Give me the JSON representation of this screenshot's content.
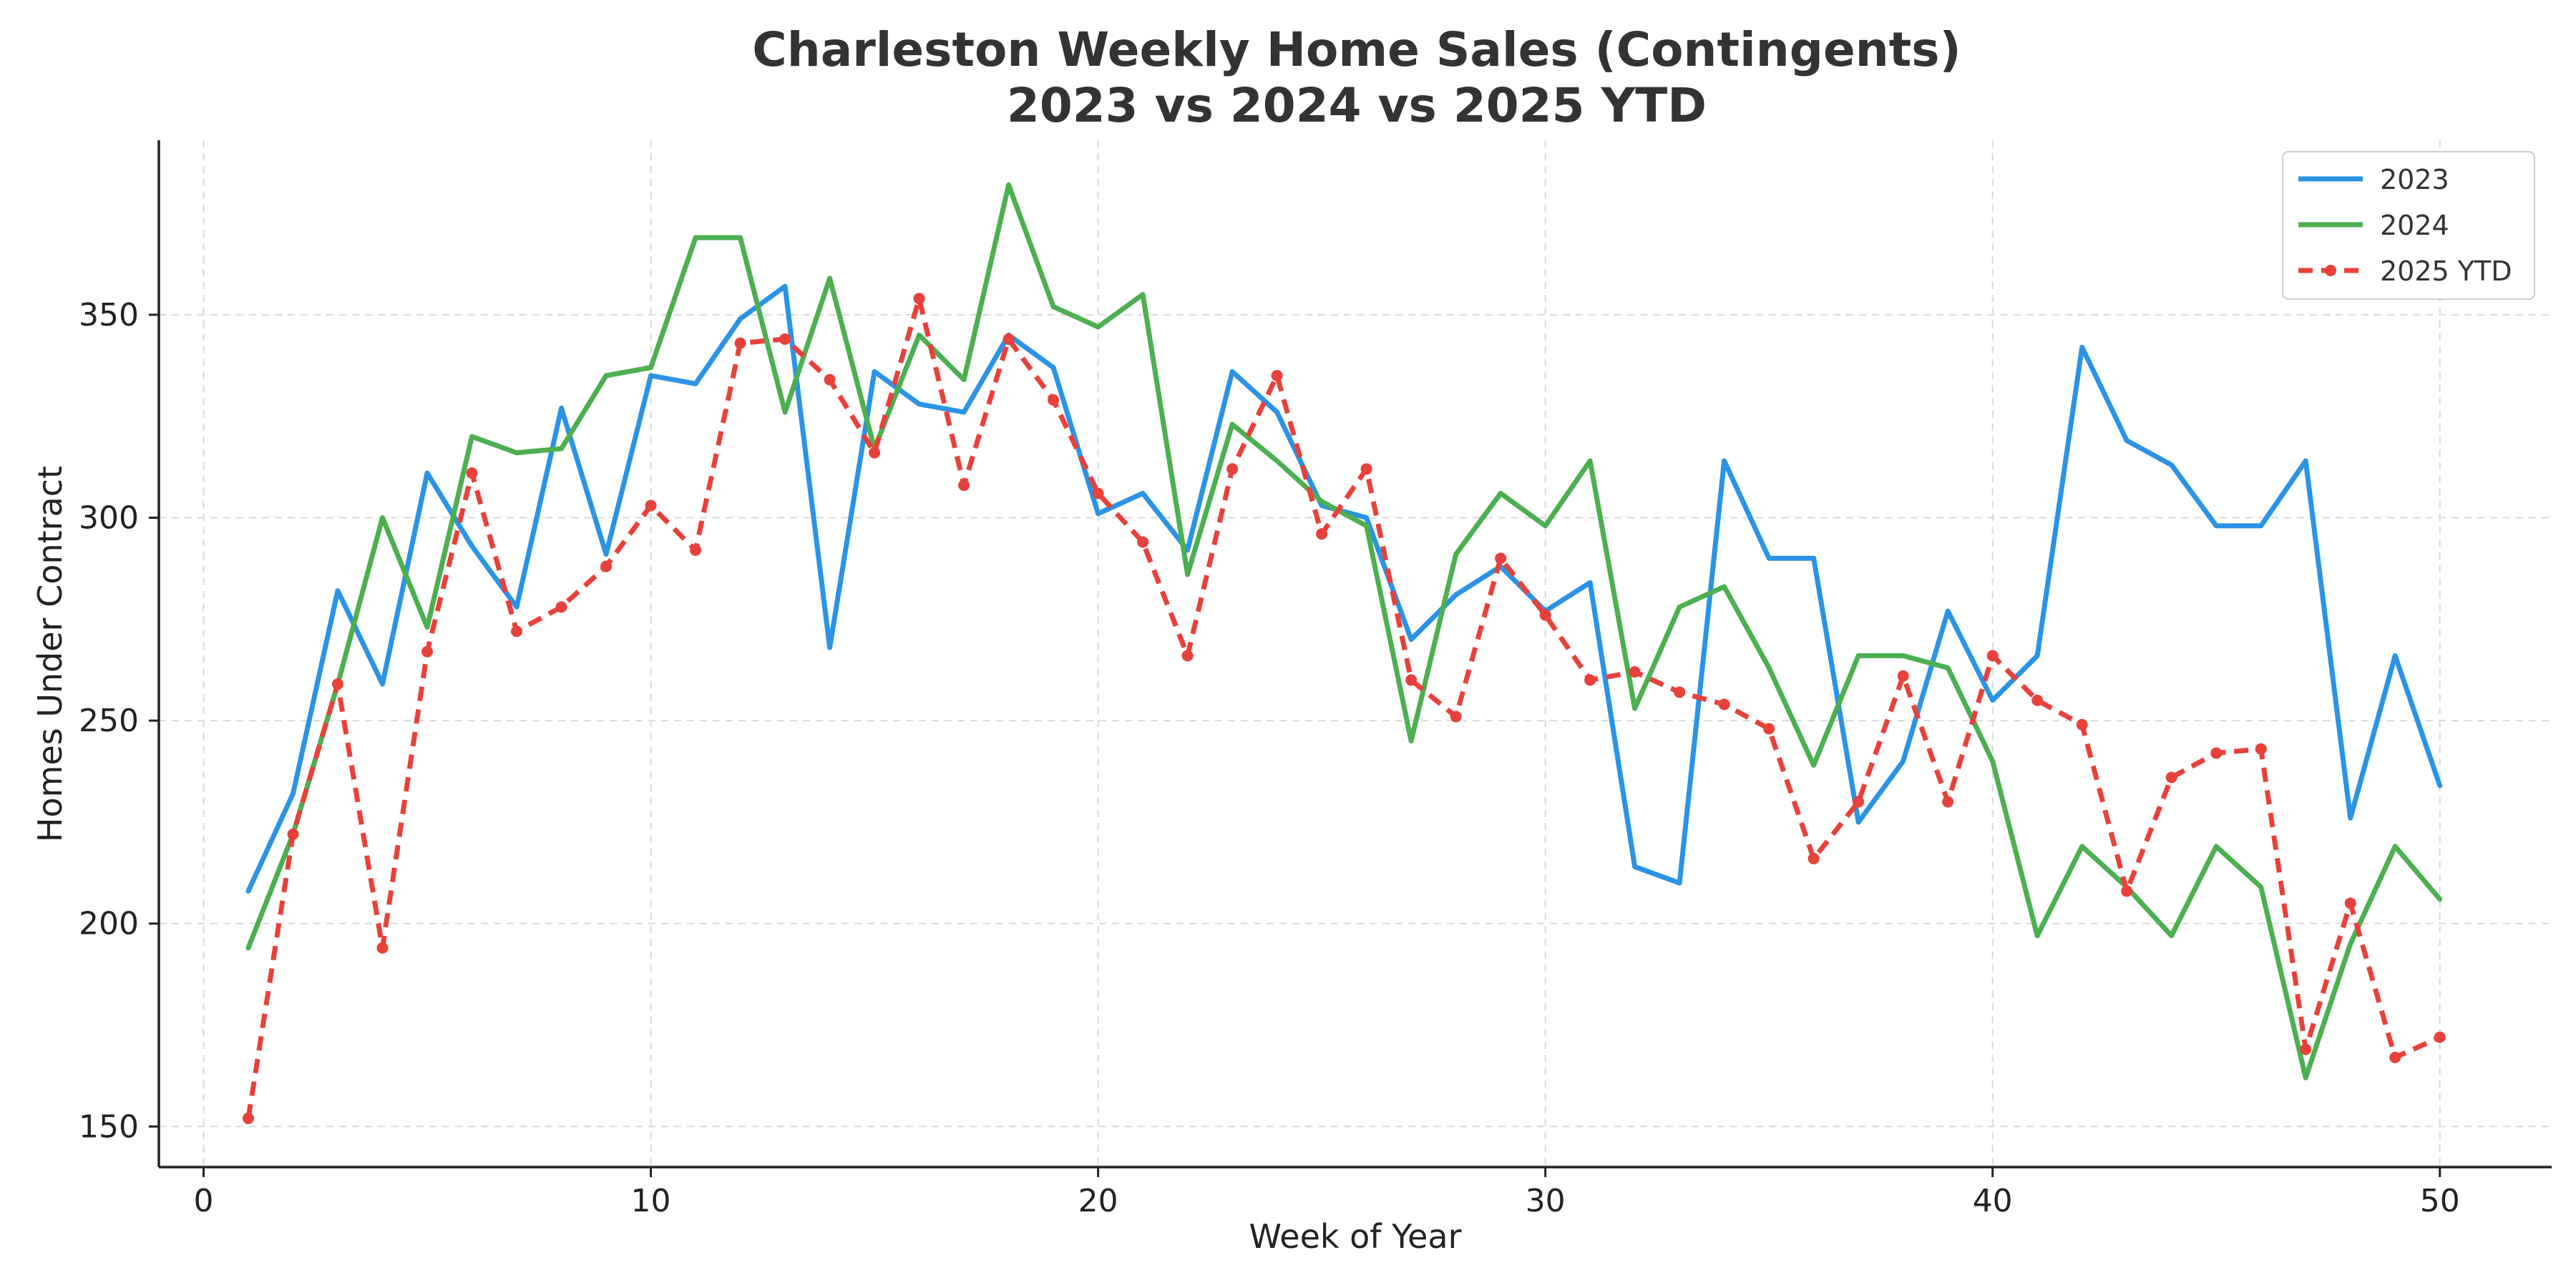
{
  "chart_data": {
    "type": "line",
    "title": "Charleston Weekly Home Sales (Contingents)",
    "subtitle": "2023 vs 2024 vs 2025 YTD",
    "xlabel": "Week of Year",
    "ylabel": "Homes Under Contract",
    "xlim": [
      -1,
      52.5
    ],
    "ylim": [
      140,
      393
    ],
    "xticks": [
      0,
      10,
      20,
      30,
      40,
      50
    ],
    "yticks": [
      150,
      200,
      250,
      300,
      350
    ],
    "grid": true,
    "legend_position": "top-right",
    "x": [
      1,
      2,
      3,
      4,
      5,
      6,
      7,
      8,
      9,
      10,
      11,
      12,
      13,
      14,
      15,
      16,
      17,
      18,
      19,
      20,
      21,
      22,
      23,
      24,
      25,
      26,
      27,
      28,
      29,
      30,
      31,
      32,
      33,
      34,
      35,
      36,
      37,
      38,
      39,
      40,
      41,
      42,
      43,
      44,
      45,
      46,
      47,
      48,
      49,
      50
    ],
    "series": [
      {
        "name": "2023",
        "color": "#2a93e6",
        "style": "solid",
        "values": [
          208,
          232,
          282,
          259,
          311,
          293,
          278,
          327,
          291,
          335,
          333,
          349,
          357,
          268,
          336,
          328,
          326,
          345,
          337,
          301,
          306,
          292,
          336,
          326,
          303,
          300,
          270,
          281,
          288,
          277,
          284,
          214,
          210,
          314,
          290,
          290,
          225,
          240,
          277,
          255,
          266,
          342,
          319,
          313,
          298,
          298,
          314,
          226,
          266,
          234
        ]
      },
      {
        "name": "2024",
        "color": "#4caf50",
        "style": "solid",
        "values": [
          194,
          222,
          259,
          300,
          273,
          320,
          316,
          317,
          335,
          337,
          369,
          369,
          326,
          359,
          317,
          345,
          334,
          382,
          352,
          347,
          355,
          286,
          323,
          314,
          304,
          298,
          245,
          291,
          306,
          298,
          314,
          253,
          278,
          283,
          263,
          239,
          266,
          266,
          263,
          240,
          197,
          219,
          209,
          197,
          219,
          209,
          162,
          195,
          219,
          206
        ]
      },
      {
        "name": "2025 YTD",
        "color": "#e8413a",
        "style": "dashed",
        "marker": "circle",
        "values": [
          152,
          222,
          259,
          194,
          267,
          311,
          272,
          278,
          288,
          303,
          292,
          343,
          344,
          334,
          316,
          354,
          308,
          344,
          329,
          306,
          294,
          266,
          312,
          335,
          296,
          312,
          260,
          251,
          290,
          276,
          260,
          262,
          257,
          254,
          248,
          216,
          230,
          261,
          230,
          266,
          255,
          249,
          208,
          236,
          242,
          243,
          169,
          205,
          167,
          172
        ]
      }
    ]
  }
}
